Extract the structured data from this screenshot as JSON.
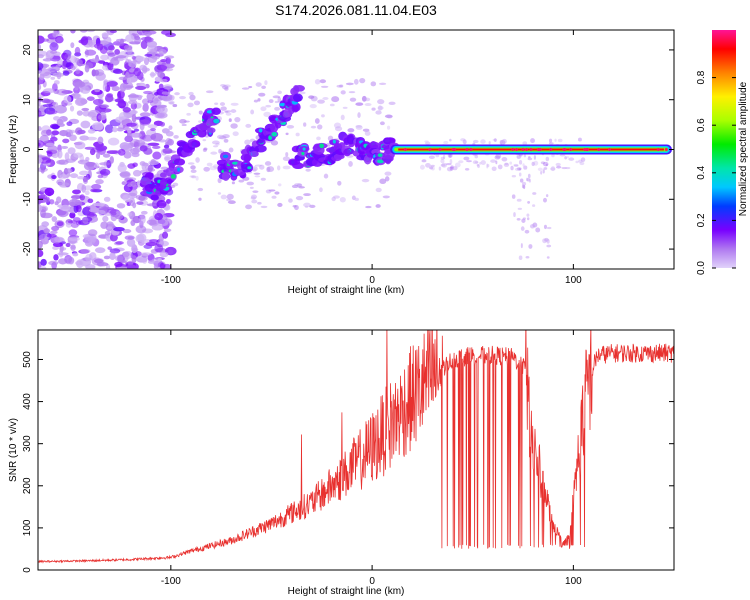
{
  "title": "S174.2026.081.11.04.E03",
  "chart_data": [
    {
      "id": "spectrogram",
      "type": "heatmap",
      "title": "S174.2026.081.11.04.E03",
      "xlabel": "Height of straight line (km)",
      "ylabel": "Frequency (Hz)",
      "xlim": [
        -166,
        150
      ],
      "ylim": [
        -24,
        24
      ],
      "xticks": [
        -100,
        0,
        100
      ],
      "yticks": [
        -20,
        -10,
        0,
        10,
        20
      ],
      "xtick_labels": [
        "-100",
        "0",
        "100"
      ],
      "ytick_labels": [
        "-20",
        "-10",
        "0",
        "10",
        "20"
      ],
      "carrier": {
        "start_km": 10,
        "end_km": 148,
        "frequency_hz": 0,
        "amplitude": 0.95
      },
      "feature_tracks": [
        {
          "x": [
            -113,
            -108,
            -102,
            -95,
            -88,
            -82,
            -78
          ],
          "y": [
            -7,
            -8,
            -6,
            0,
            3,
            5,
            6
          ]
        },
        {
          "x": [
            -75,
            -68,
            -60,
            -52,
            -45,
            -40,
            -36
          ],
          "y": [
            -3,
            -5,
            -1,
            3,
            6,
            9,
            12
          ]
        },
        {
          "x": [
            -38,
            -32,
            -25,
            -18,
            -12,
            -5,
            0,
            6,
            10
          ],
          "y": [
            -2,
            -1,
            -1,
            0,
            1,
            0,
            -1,
            -0.5,
            0
          ]
        }
      ],
      "colorbar": {
        "label": "Normalized spectral amplitude",
        "min": 0.0,
        "max": 1.0,
        "ticks": [
          0.0,
          0.2,
          0.4,
          0.6,
          0.8
        ],
        "tick_labels": [
          "0.0",
          "0.2",
          "0.4",
          "0.6",
          "0.8"
        ]
      }
    },
    {
      "id": "snr",
      "type": "line",
      "xlabel": "Height of straight line (km)",
      "ylabel": "SNR (10 * v/v)",
      "xlim": [
        -166,
        150
      ],
      "ylim": [
        0,
        570
      ],
      "xticks": [
        -100,
        0,
        100
      ],
      "yticks": [
        0,
        100,
        200,
        300,
        400,
        500
      ],
      "xtick_labels": [
        "-100",
        "0",
        "100"
      ],
      "ytick_labels": [
        "0",
        "100",
        "200",
        "300",
        "400",
        "500"
      ],
      "series": [
        {
          "name": "SNR",
          "color": "#e8312f",
          "envelope": {
            "x": [
              -166,
              -140,
              -120,
              -100,
              -90,
              -70,
              -50,
              -30,
              -15,
              0,
              10,
              20,
              30,
              40,
              50,
              60,
              70,
              76,
              80,
              85,
              90,
              95,
              98,
              102,
              105,
              108,
              112,
              120,
              130,
              140,
              150
            ],
            "y": [
              20,
              22,
              25,
              30,
              45,
              70,
              110,
              160,
              220,
              290,
              350,
              410,
              460,
              500,
              510,
              510,
              505,
              480,
              300,
              200,
              110,
              60,
              80,
              250,
              370,
              460,
              510,
              515,
              515,
              515,
              515
            ]
          },
          "dropouts": {
            "x_start": 34,
            "x_end": 106,
            "low_value": 50
          }
        }
      ]
    }
  ]
}
